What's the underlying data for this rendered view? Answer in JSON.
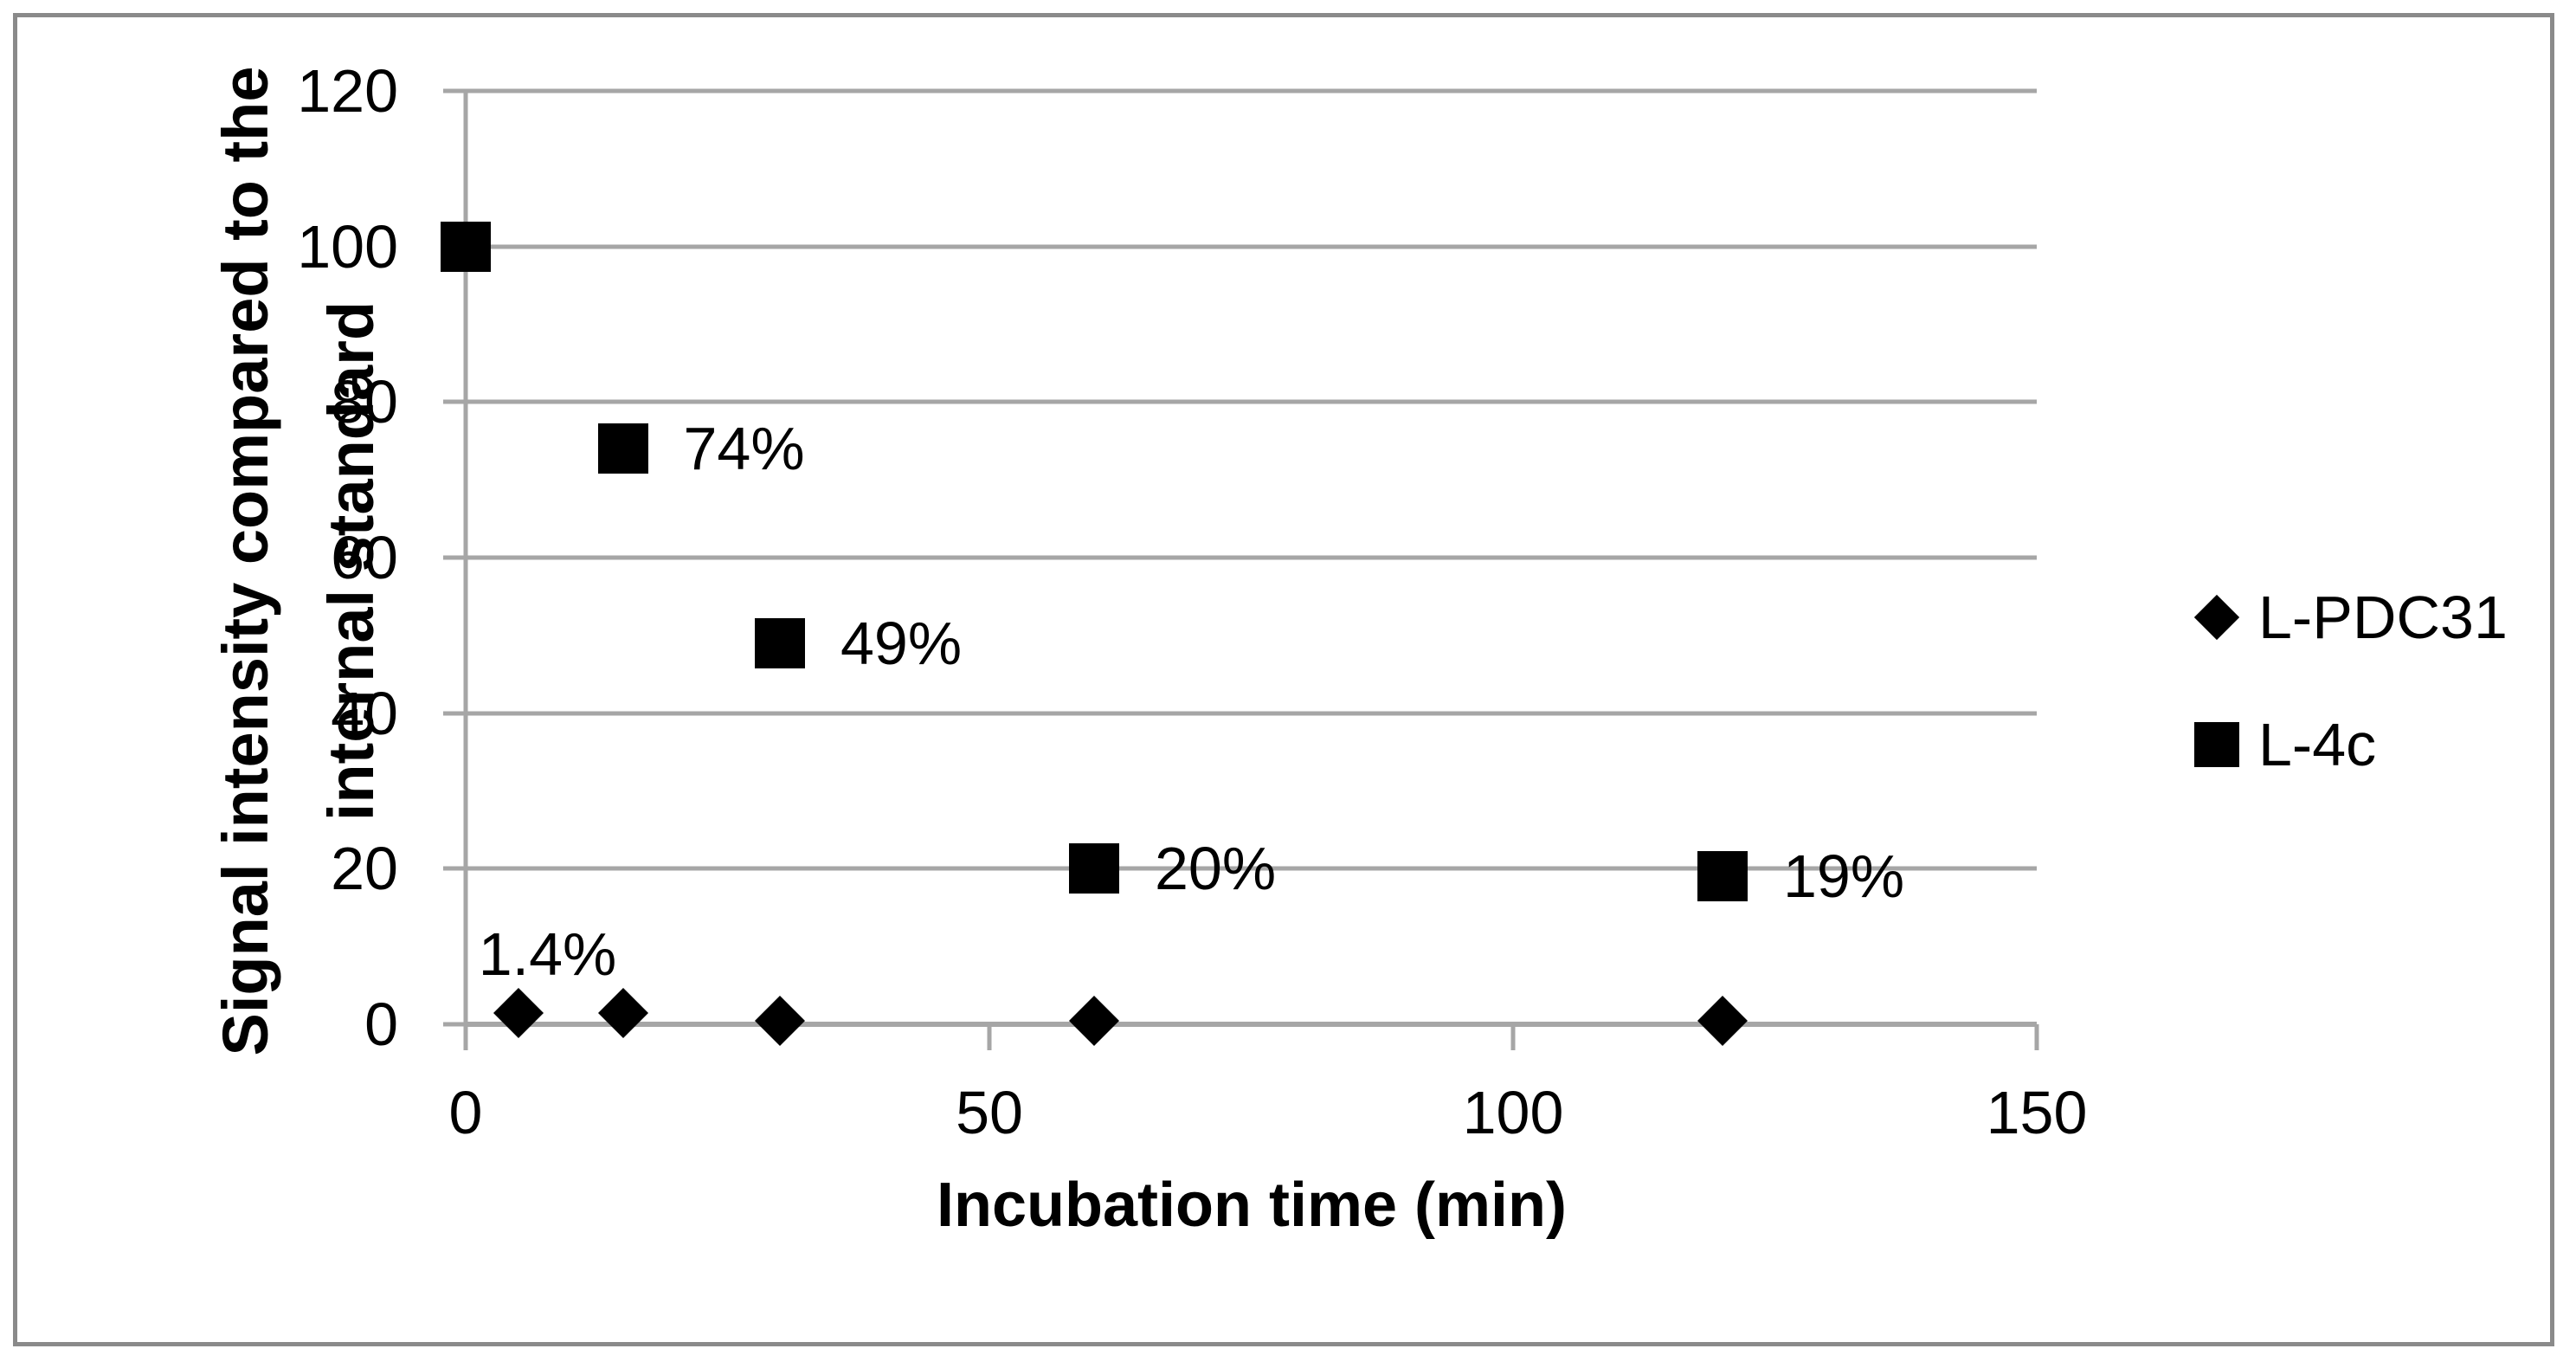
{
  "chart_data": {
    "type": "scatter",
    "title": "",
    "xlabel": "Incubation time (min)",
    "ylabel": "Signal intensity compared to the internal standard",
    "ylabel_lines": [
      "Signal intensity compared to the",
      "internal standard"
    ],
    "xlim": [
      0,
      150
    ],
    "ylim": [
      0,
      120
    ],
    "x_ticks": [
      0,
      50,
      100,
      150
    ],
    "y_ticks": [
      0,
      20,
      40,
      60,
      80,
      100,
      120
    ],
    "grid": "horizontal-only",
    "legend_position": "right-middle",
    "series": [
      {
        "name": "L-PDC31",
        "marker": "diamond",
        "color": "#000000",
        "points": [
          {
            "x": 5,
            "y": 1.4,
            "label": "1.4%",
            "label_pos": "above"
          },
          {
            "x": 15,
            "y": 1.4
          },
          {
            "x": 30,
            "y": 0.5
          },
          {
            "x": 60,
            "y": 0.5
          },
          {
            "x": 120,
            "y": 0.5
          }
        ]
      },
      {
        "name": "L-4c",
        "marker": "square",
        "color": "#000000",
        "points": [
          {
            "x": 0,
            "y": 100
          },
          {
            "x": 15,
            "y": 74,
            "label": "74%",
            "label_pos": "right"
          },
          {
            "x": 30,
            "y": 49,
            "label": "49%",
            "label_pos": "right"
          },
          {
            "x": 60,
            "y": 20,
            "label": "20%",
            "label_pos": "right"
          },
          {
            "x": 120,
            "y": 19,
            "label": "19%",
            "label_pos": "right"
          }
        ]
      }
    ],
    "colors": {
      "marker": "#000000",
      "gridline": "#A6A6A6",
      "axis": "#A6A6A6",
      "frame": "#8A8A8A",
      "text": "#000000",
      "background": "#FFFFFF"
    }
  }
}
